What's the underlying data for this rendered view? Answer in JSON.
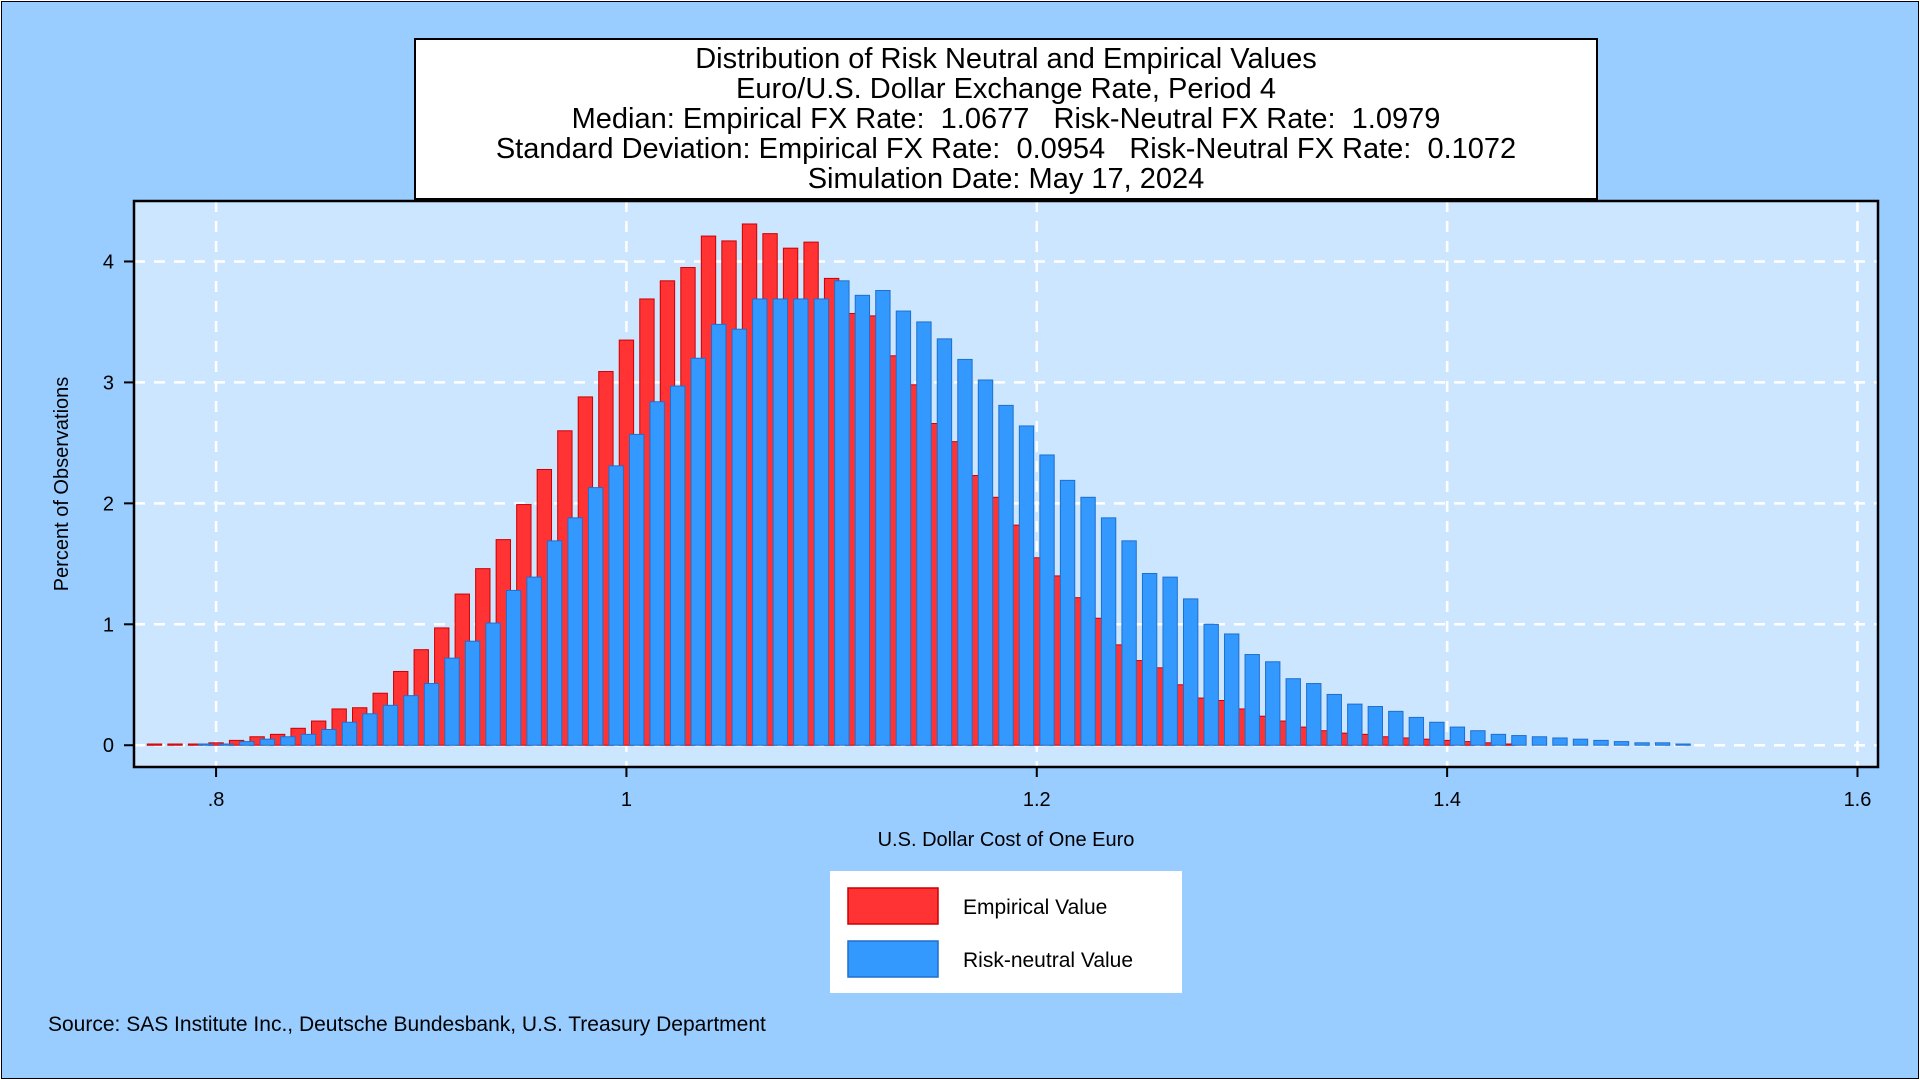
{
  "colors": {
    "background": "#99ccff",
    "plot_area": "#cce6ff",
    "grid": "#ffffff",
    "empirical": "#ff3333",
    "empirical_edge": "#cc0000",
    "risk_neutral": "#3399ff",
    "risk_neutral_edge": "#1f6fcc"
  },
  "chart_data": {
    "type": "bar",
    "title_lines": [
      "Distribution of Risk Neutral and Empirical Values",
      "Euro/U.S. Dollar Exchange Rate, Period 4",
      "Median: Empirical FX Rate:  1.0677   Risk-Neutral FX Rate:  1.0979",
      "Standard Deviation: Empirical FX Rate:  0.0954   Risk-Neutral FX Rate:  0.1072",
      "Simulation Date: May 17, 2024"
    ],
    "xlabel": "U.S. Dollar Cost of One Euro",
    "ylabel": "Percent of Observations",
    "xlim": [
      0.76,
      1.61
    ],
    "ylim": [
      -0.18,
      4.5
    ],
    "x_ticks": [
      0.8,
      1.0,
      1.2,
      1.4,
      1.6
    ],
    "x_tick_labels": [
      ".8",
      "1",
      "1.2",
      "1.4",
      "1.6"
    ],
    "y_ticks": [
      0,
      1,
      2,
      3,
      4
    ],
    "y_tick_labels": [
      "0",
      "1",
      "2",
      "3",
      "4"
    ],
    "grid": true,
    "legend_position": "bottom-center",
    "source": "Source: SAS Institute Inc., Deutsche Bundesbank, U.S. Treasury Department",
    "series": [
      {
        "name": "Empirical Value",
        "color": "#ff3333",
        "x": [
          0.77,
          0.78,
          0.79,
          0.8,
          0.81,
          0.82,
          0.83,
          0.84,
          0.85,
          0.86,
          0.87,
          0.88,
          0.89,
          0.9,
          0.91,
          0.92,
          0.93,
          0.94,
          0.95,
          0.96,
          0.97,
          0.98,
          0.99,
          1.0,
          1.01,
          1.02,
          1.03,
          1.04,
          1.05,
          1.06,
          1.07,
          1.08,
          1.09,
          1.1,
          1.11,
          1.12,
          1.13,
          1.14,
          1.15,
          1.16,
          1.17,
          1.18,
          1.19,
          1.2,
          1.21,
          1.22,
          1.23,
          1.24,
          1.25,
          1.26,
          1.27,
          1.28,
          1.29,
          1.3,
          1.31,
          1.32,
          1.33,
          1.34,
          1.35,
          1.36,
          1.37,
          1.38,
          1.39,
          1.4,
          1.41,
          1.42,
          1.43
        ],
        "values": [
          0.01,
          0.01,
          0.01,
          0.02,
          0.04,
          0.07,
          0.09,
          0.14,
          0.2,
          0.3,
          0.31,
          0.43,
          0.61,
          0.79,
          0.97,
          1.25,
          1.46,
          1.7,
          1.99,
          2.28,
          2.6,
          2.88,
          3.09,
          3.35,
          3.69,
          3.84,
          3.95,
          4.21,
          4.17,
          4.31,
          4.23,
          4.11,
          4.16,
          3.86,
          3.57,
          3.55,
          3.22,
          2.98,
          2.66,
          2.51,
          2.23,
          2.05,
          1.82,
          1.55,
          1.4,
          1.22,
          1.05,
          0.83,
          0.7,
          0.64,
          0.5,
          0.39,
          0.37,
          0.3,
          0.24,
          0.2,
          0.15,
          0.12,
          0.1,
          0.09,
          0.07,
          0.06,
          0.05,
          0.04,
          0.03,
          0.02,
          0.01
        ]
      },
      {
        "name": "Risk-neutral Value",
        "color": "#3399ff",
        "x": [
          0.79,
          0.8,
          0.81,
          0.82,
          0.83,
          0.84,
          0.85,
          0.86,
          0.87,
          0.88,
          0.89,
          0.9,
          0.91,
          0.92,
          0.93,
          0.94,
          0.95,
          0.96,
          0.97,
          0.98,
          0.99,
          1.0,
          1.01,
          1.02,
          1.03,
          1.04,
          1.05,
          1.06,
          1.07,
          1.08,
          1.09,
          1.1,
          1.11,
          1.12,
          1.13,
          1.14,
          1.15,
          1.16,
          1.17,
          1.18,
          1.19,
          1.2,
          1.21,
          1.22,
          1.23,
          1.24,
          1.25,
          1.26,
          1.27,
          1.28,
          1.29,
          1.3,
          1.31,
          1.32,
          1.33,
          1.34,
          1.35,
          1.36,
          1.37,
          1.38,
          1.39,
          1.4,
          1.41,
          1.42,
          1.43,
          1.44,
          1.45,
          1.46,
          1.47,
          1.48,
          1.49,
          1.5,
          1.51
        ],
        "values": [
          0.01,
          0.01,
          0.03,
          0.05,
          0.07,
          0.09,
          0.13,
          0.19,
          0.26,
          0.33,
          0.41,
          0.51,
          0.72,
          0.86,
          1.01,
          1.28,
          1.39,
          1.69,
          1.88,
          2.13,
          2.31,
          2.57,
          2.84,
          2.97,
          3.2,
          3.48,
          3.44,
          3.69,
          3.69,
          3.69,
          3.69,
          3.84,
          3.72,
          3.76,
          3.59,
          3.5,
          3.36,
          3.19,
          3.02,
          2.81,
          2.64,
          2.4,
          2.19,
          2.05,
          1.88,
          1.69,
          1.42,
          1.39,
          1.21,
          1.0,
          0.92,
          0.75,
          0.69,
          0.55,
          0.51,
          0.42,
          0.34,
          0.32,
          0.28,
          0.23,
          0.19,
          0.15,
          0.12,
          0.09,
          0.08,
          0.07,
          0.06,
          0.05,
          0.04,
          0.03,
          0.02,
          0.02,
          0.01
        ]
      }
    ]
  }
}
